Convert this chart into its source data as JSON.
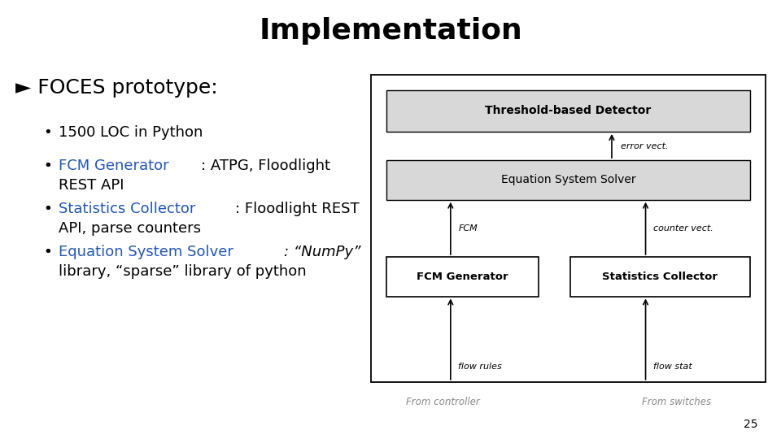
{
  "title": "Implementation",
  "title_fontsize": 26,
  "title_weight": "bold",
  "background_color": "#ffffff",
  "text_color": "#000000",
  "blue_color": "#2255bb",
  "bullet_heading": "► FOCES prototype:",
  "bullet_heading_fontsize": 18,
  "bullet_fontsize": 13,
  "page_number": "25",
  "diagram": {
    "box_edge": "#000000",
    "fill_gray": "#d8d8d8",
    "fill_white": "#ffffff"
  }
}
